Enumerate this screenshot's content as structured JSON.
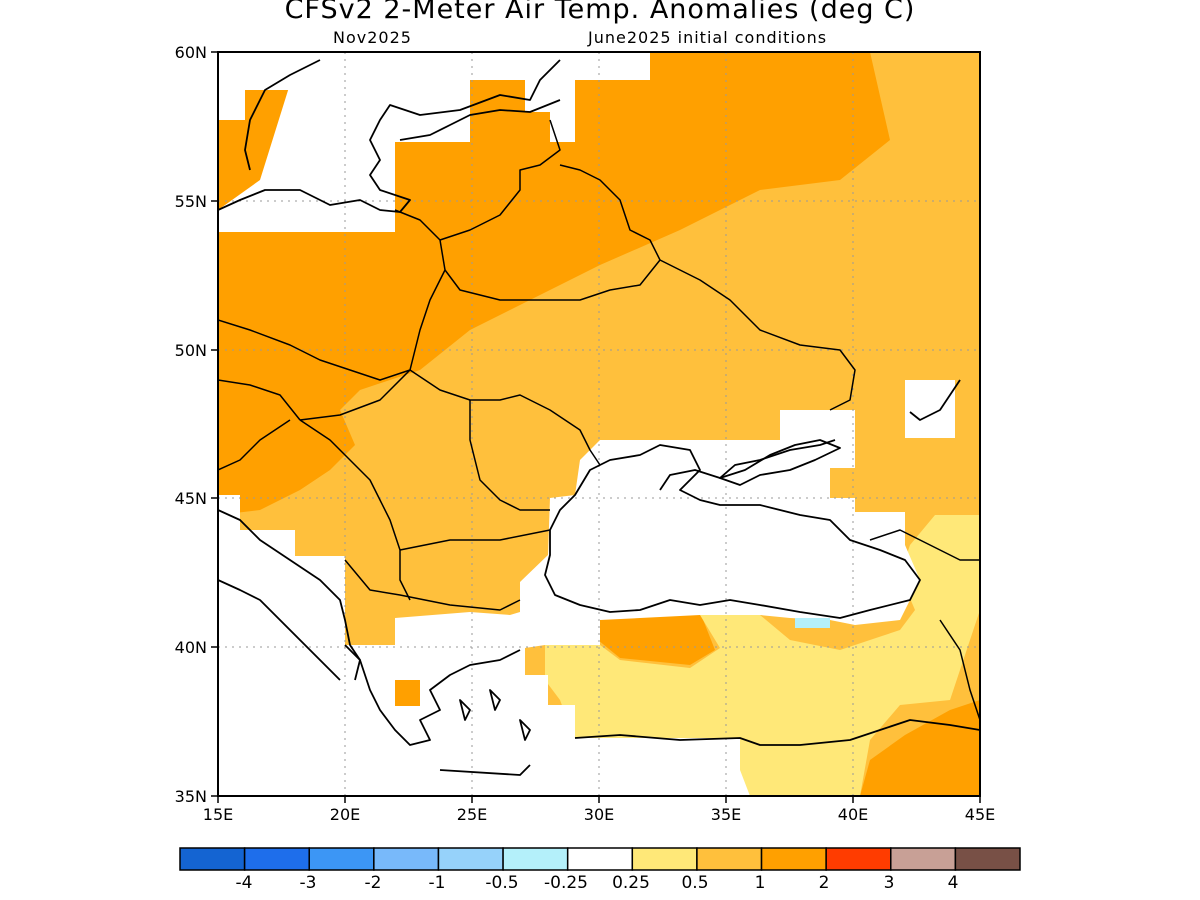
{
  "title": "CFSv2 2-Meter Air Temp. Anomalies (deg C)",
  "subtitle_left": "Nov2025",
  "subtitle_right": "June2025 initial conditions",
  "lat_ticks": [
    "60N",
    "55N",
    "50N",
    "45N",
    "40N",
    "35N"
  ],
  "lon_ticks": [
    "15E",
    "20E",
    "25E",
    "30E",
    "35E",
    "40E",
    "45E"
  ],
  "colorbar": {
    "colors": [
      "#1464d2",
      "#1e6eeb",
      "#3c96f5",
      "#78b9fa",
      "#96d2fa",
      "#b4f0fa",
      "#ffffff",
      "#ffe878",
      "#ffc03c",
      "#ffa000",
      "#ff3c00",
      "#c8a096",
      "#785046"
    ],
    "labels": [
      "-4",
      "-3",
      "-2",
      "-1",
      "-0.5",
      "-0.25",
      "0.25",
      "0.5",
      "1",
      "2",
      "3",
      "4"
    ]
  },
  "legend_colors": {
    "light_orange": "#ffc03c",
    "orange": "#ffa000",
    "yellow": "#ffe878",
    "light_blue": "#b4f0fa",
    "white": "#ffffff"
  }
}
